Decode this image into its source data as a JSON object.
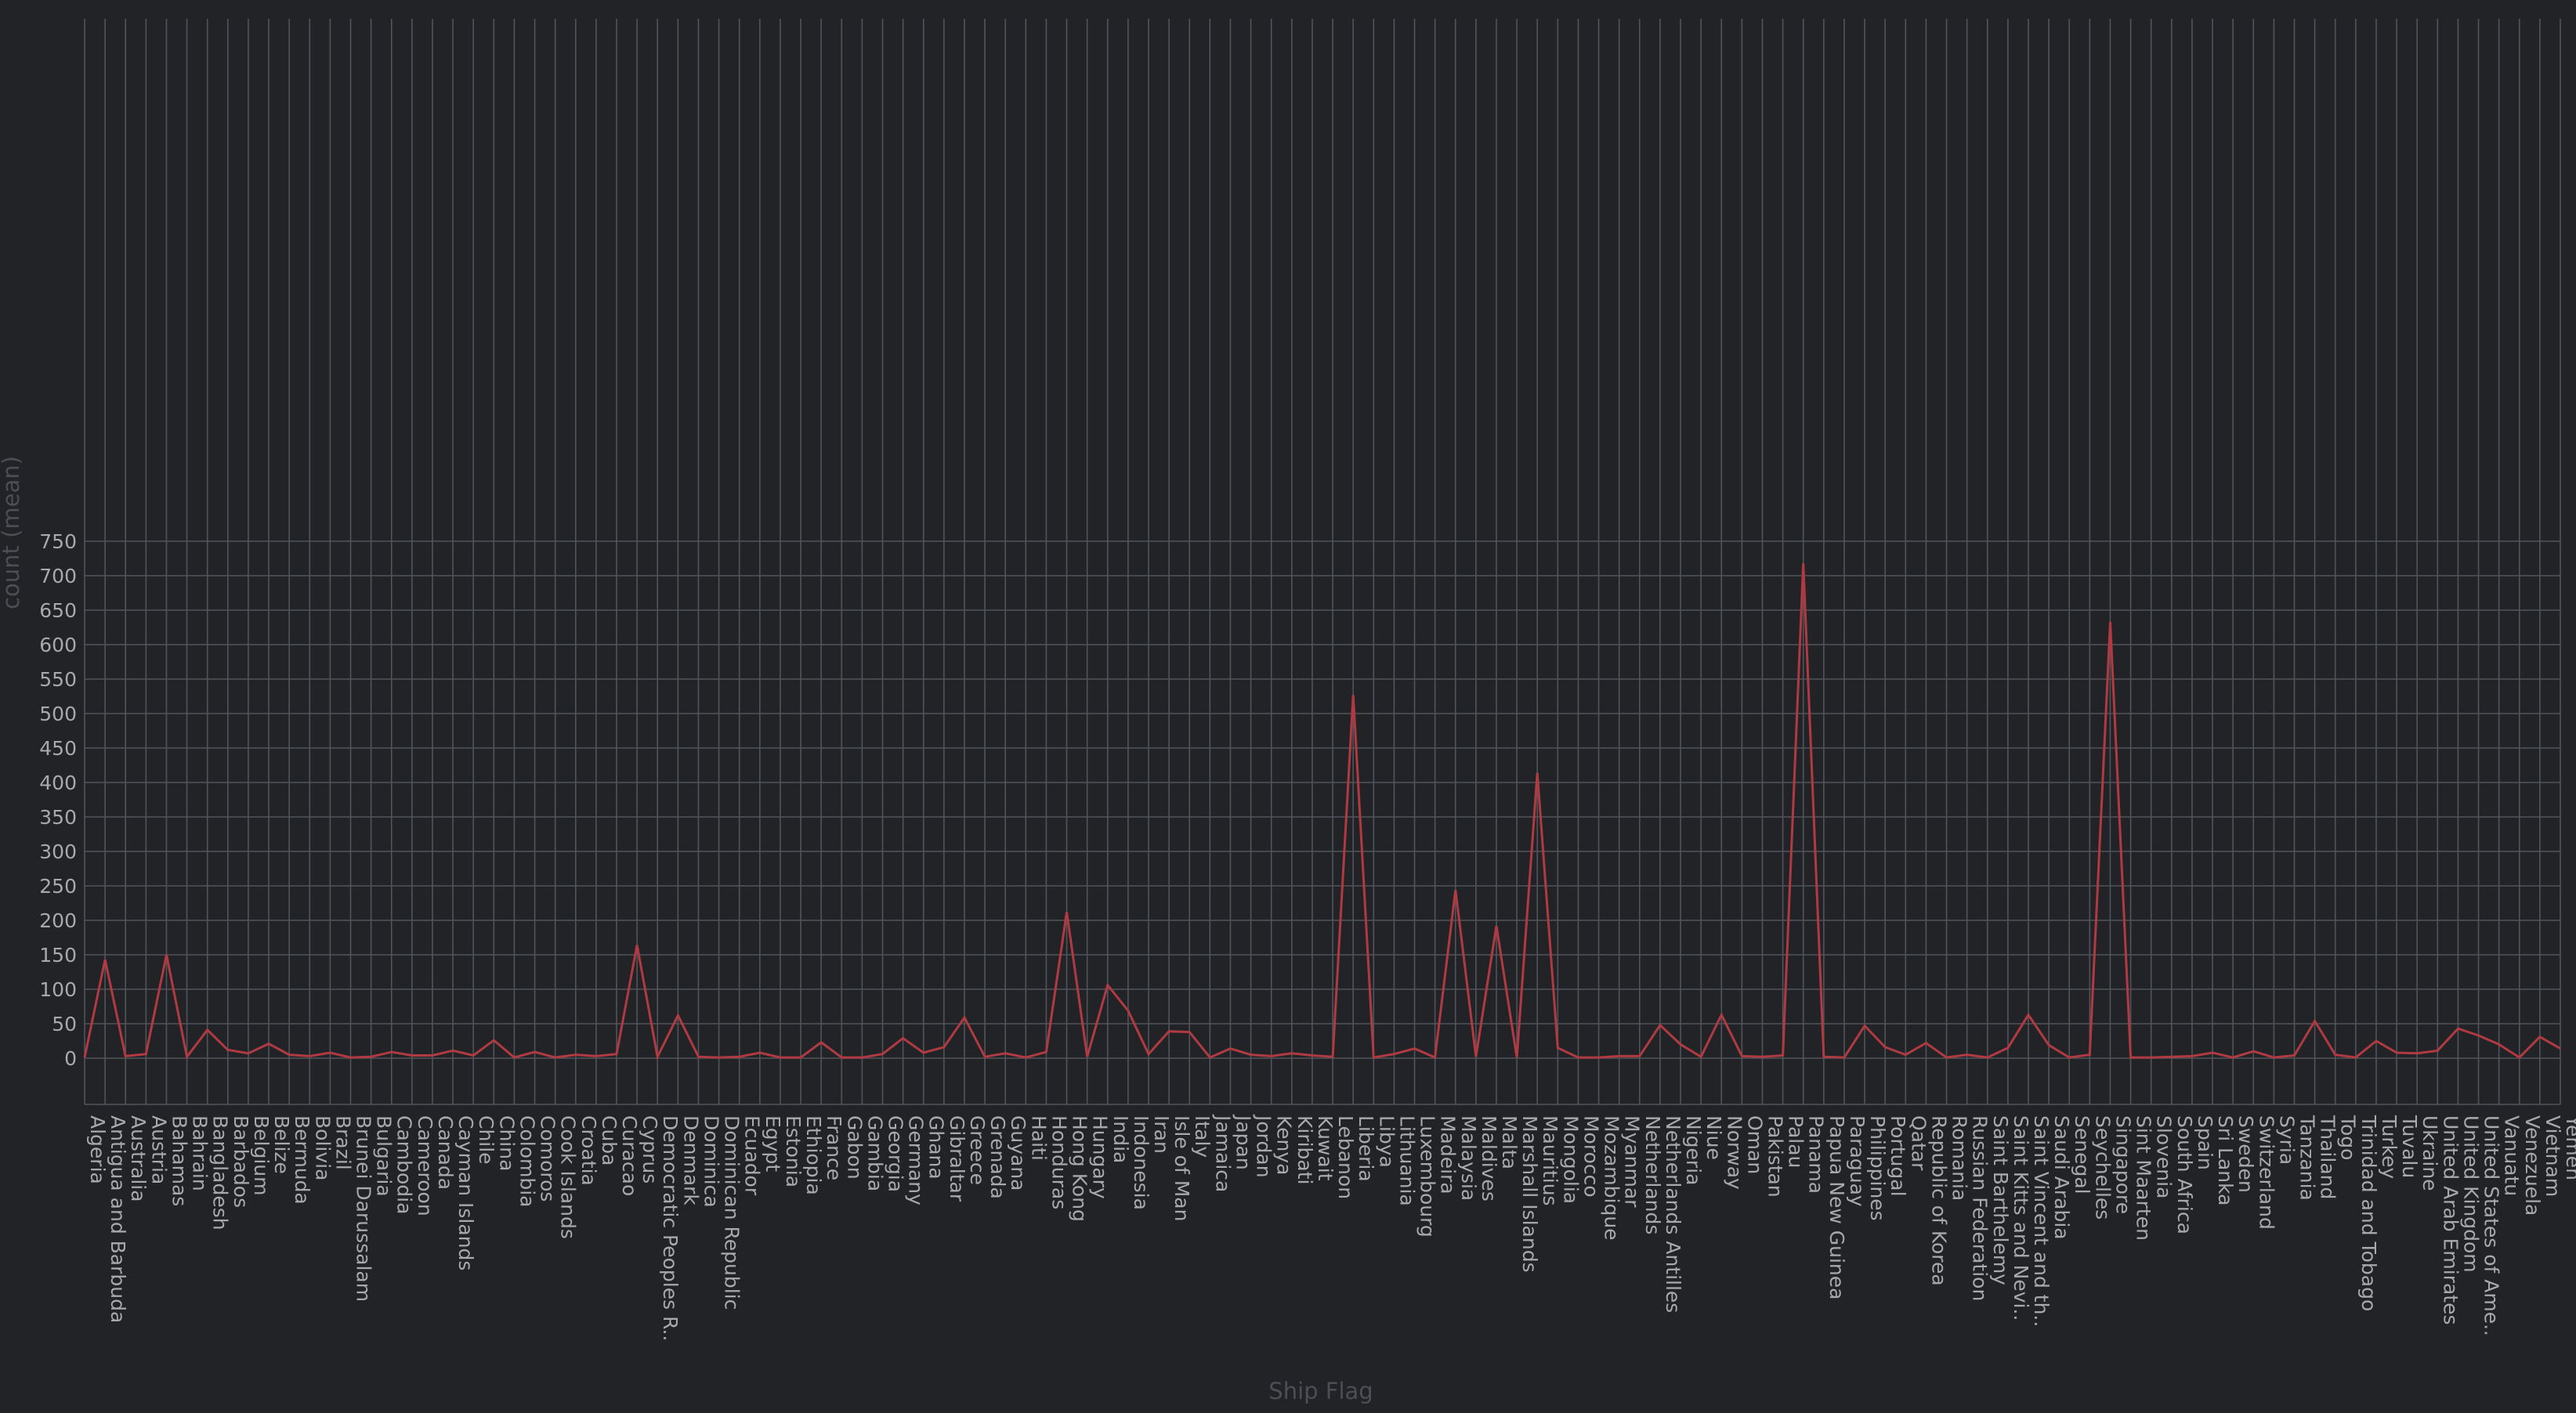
{
  "chart_data": {
    "type": "line",
    "title": "",
    "xlabel": "Ship Flag",
    "ylabel": "count (mean)",
    "ylim": [
      -30,
      750
    ],
    "yticks": [
      0,
      50,
      100,
      150,
      200,
      250,
      300,
      350,
      400,
      450,
      500,
      550,
      600,
      650,
      700,
      750
    ],
    "grid": true,
    "colors": {
      "background": "#222327",
      "grid": "#51545a",
      "series": "#b03a42",
      "tick_text": "#a7a9ad",
      "axis_title": "#4b4e55"
    },
    "categories": [
      "Algeria",
      "Antigua and Barbuda",
      "Australia",
      "Austria",
      "Bahamas",
      "Bahrain",
      "Bangladesh",
      "Barbados",
      "Belgium",
      "Belize",
      "Bermuda",
      "Bolivia",
      "Brazil",
      "Brunei Darussalam",
      "Bulgaria",
      "Cambodia",
      "Cameroon",
      "Canada",
      "Cayman Islands",
      "Chile",
      "China",
      "Colombia",
      "Comoros",
      "Cook Islands",
      "Croatia",
      "Cuba",
      "Curacao",
      "Cyprus",
      "Democratic Peoples R..",
      "Denmark",
      "Dominica",
      "Dominican Republic",
      "Ecuador",
      "Egypt",
      "Estonia",
      "Ethiopia",
      "France",
      "Gabon",
      "Gambia",
      "Georgia",
      "Germany",
      "Ghana",
      "Gibraltar",
      "Greece",
      "Grenada",
      "Guyana",
      "Haiti",
      "Honduras",
      "Hong Kong",
      "Hungary",
      "India",
      "Indonesia",
      "Iran",
      "Isle of Man",
      "Italy",
      "Jamaica",
      "Japan",
      "Jordan",
      "Kenya",
      "Kiribati",
      "Kuwait",
      "Lebanon",
      "Liberia",
      "Libya",
      "Lithuania",
      "Luxembourg",
      "Madeira",
      "Malaysia",
      "Maldives",
      "Malta",
      "Marshall Islands",
      "Mauritius",
      "Mongolia",
      "Morocco",
      "Mozambique",
      "Myanmar",
      "Netherlands",
      "Netherlands Antilles",
      "Nigeria",
      "Niue",
      "Norway",
      "Oman",
      "Pakistan",
      "Palau",
      "Panama",
      "Papua New Guinea",
      "Paraguay",
      "Philippines",
      "Portugal",
      "Qatar",
      "Republic of Korea",
      "Romania",
      "Russian Federation",
      "Saint Barthelemy",
      "Saint Kitts and Nevi..",
      "Saint Vincent and th..",
      "Saudi Arabia",
      "Senegal",
      "Seychelles",
      "Singapore",
      "Sint Maarten",
      "Slovenia",
      "South Africa",
      "Spain",
      "Sri Lanka",
      "Sweden",
      "Switzerland",
      "Syria",
      "Tanzania",
      "Thailand",
      "Togo",
      "Trinidad and Tobago",
      "Turkey",
      "Tuvalu",
      "Ukraine",
      "United Arab Emirates",
      "United Kingdom",
      "United States of Ame..",
      "Vanuatu",
      "Venezuela",
      "Vietnam",
      "Yemen"
    ],
    "series": [
      {
        "name": "",
        "values": [
          1,
          143,
          3,
          6,
          150,
          2,
          41,
          12,
          7,
          21,
          5,
          3,
          8,
          1,
          2,
          9,
          4,
          4,
          11,
          4,
          26,
          1,
          9,
          1,
          5,
          3,
          6,
          164,
          2,
          62,
          2,
          1,
          2,
          8,
          1,
          1,
          23,
          1,
          1,
          6,
          29,
          8,
          16,
          59,
          2,
          7,
          1,
          9,
          212,
          2,
          106,
          69,
          6,
          39,
          38,
          1,
          14,
          5,
          3,
          7,
          4,
          2,
          527,
          1,
          6,
          14,
          1,
          244,
          2,
          192,
          1,
          414,
          15,
          1,
          1,
          3,
          3,
          48,
          20,
          2,
          63,
          3,
          2,
          4,
          718,
          2,
          1,
          47,
          16,
          5,
          22,
          1,
          5,
          1,
          15,
          63,
          19,
          1,
          5,
          633,
          1,
          1,
          2,
          3,
          8,
          1,
          10,
          1,
          4,
          54,
          5,
          1,
          25,
          8,
          7,
          11,
          43,
          33,
          20,
          1,
          31,
          14
        ]
      }
    ]
  }
}
